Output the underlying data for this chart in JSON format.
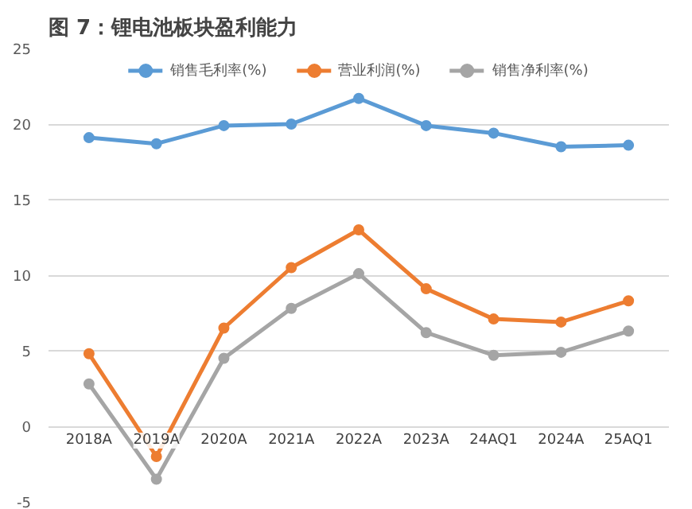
{
  "chart_data": {
    "type": "line",
    "title": "图 7：锂电池板块盈利能力",
    "categories": [
      "2018A",
      "2019A",
      "2020A",
      "2021A",
      "2022A",
      "2023A",
      "24AQ1",
      "2024A",
      "25AQ1"
    ],
    "series": [
      {
        "name": "销售毛利率(%)",
        "color": "#5b9bd5",
        "values": [
          19.1,
          18.7,
          19.9,
          20.0,
          21.7,
          19.9,
          19.4,
          18.5,
          18.6
        ]
      },
      {
        "name": "营业利润(%)",
        "color": "#ed7d31",
        "values": [
          4.8,
          -2.0,
          6.5,
          10.5,
          13.0,
          9.1,
          7.1,
          6.9,
          8.3
        ]
      },
      {
        "name": "销售净利率(%)",
        "color": "#a5a5a5",
        "values": [
          2.8,
          -3.5,
          4.5,
          7.8,
          10.1,
          6.2,
          4.7,
          4.9,
          6.3
        ]
      }
    ],
    "ylim": [
      -5,
      25
    ],
    "yticks": [
      -5,
      0,
      5,
      10,
      15,
      20,
      25
    ],
    "grid": "y",
    "legend": "top",
    "marker": "circle",
    "line_style": "solid"
  }
}
